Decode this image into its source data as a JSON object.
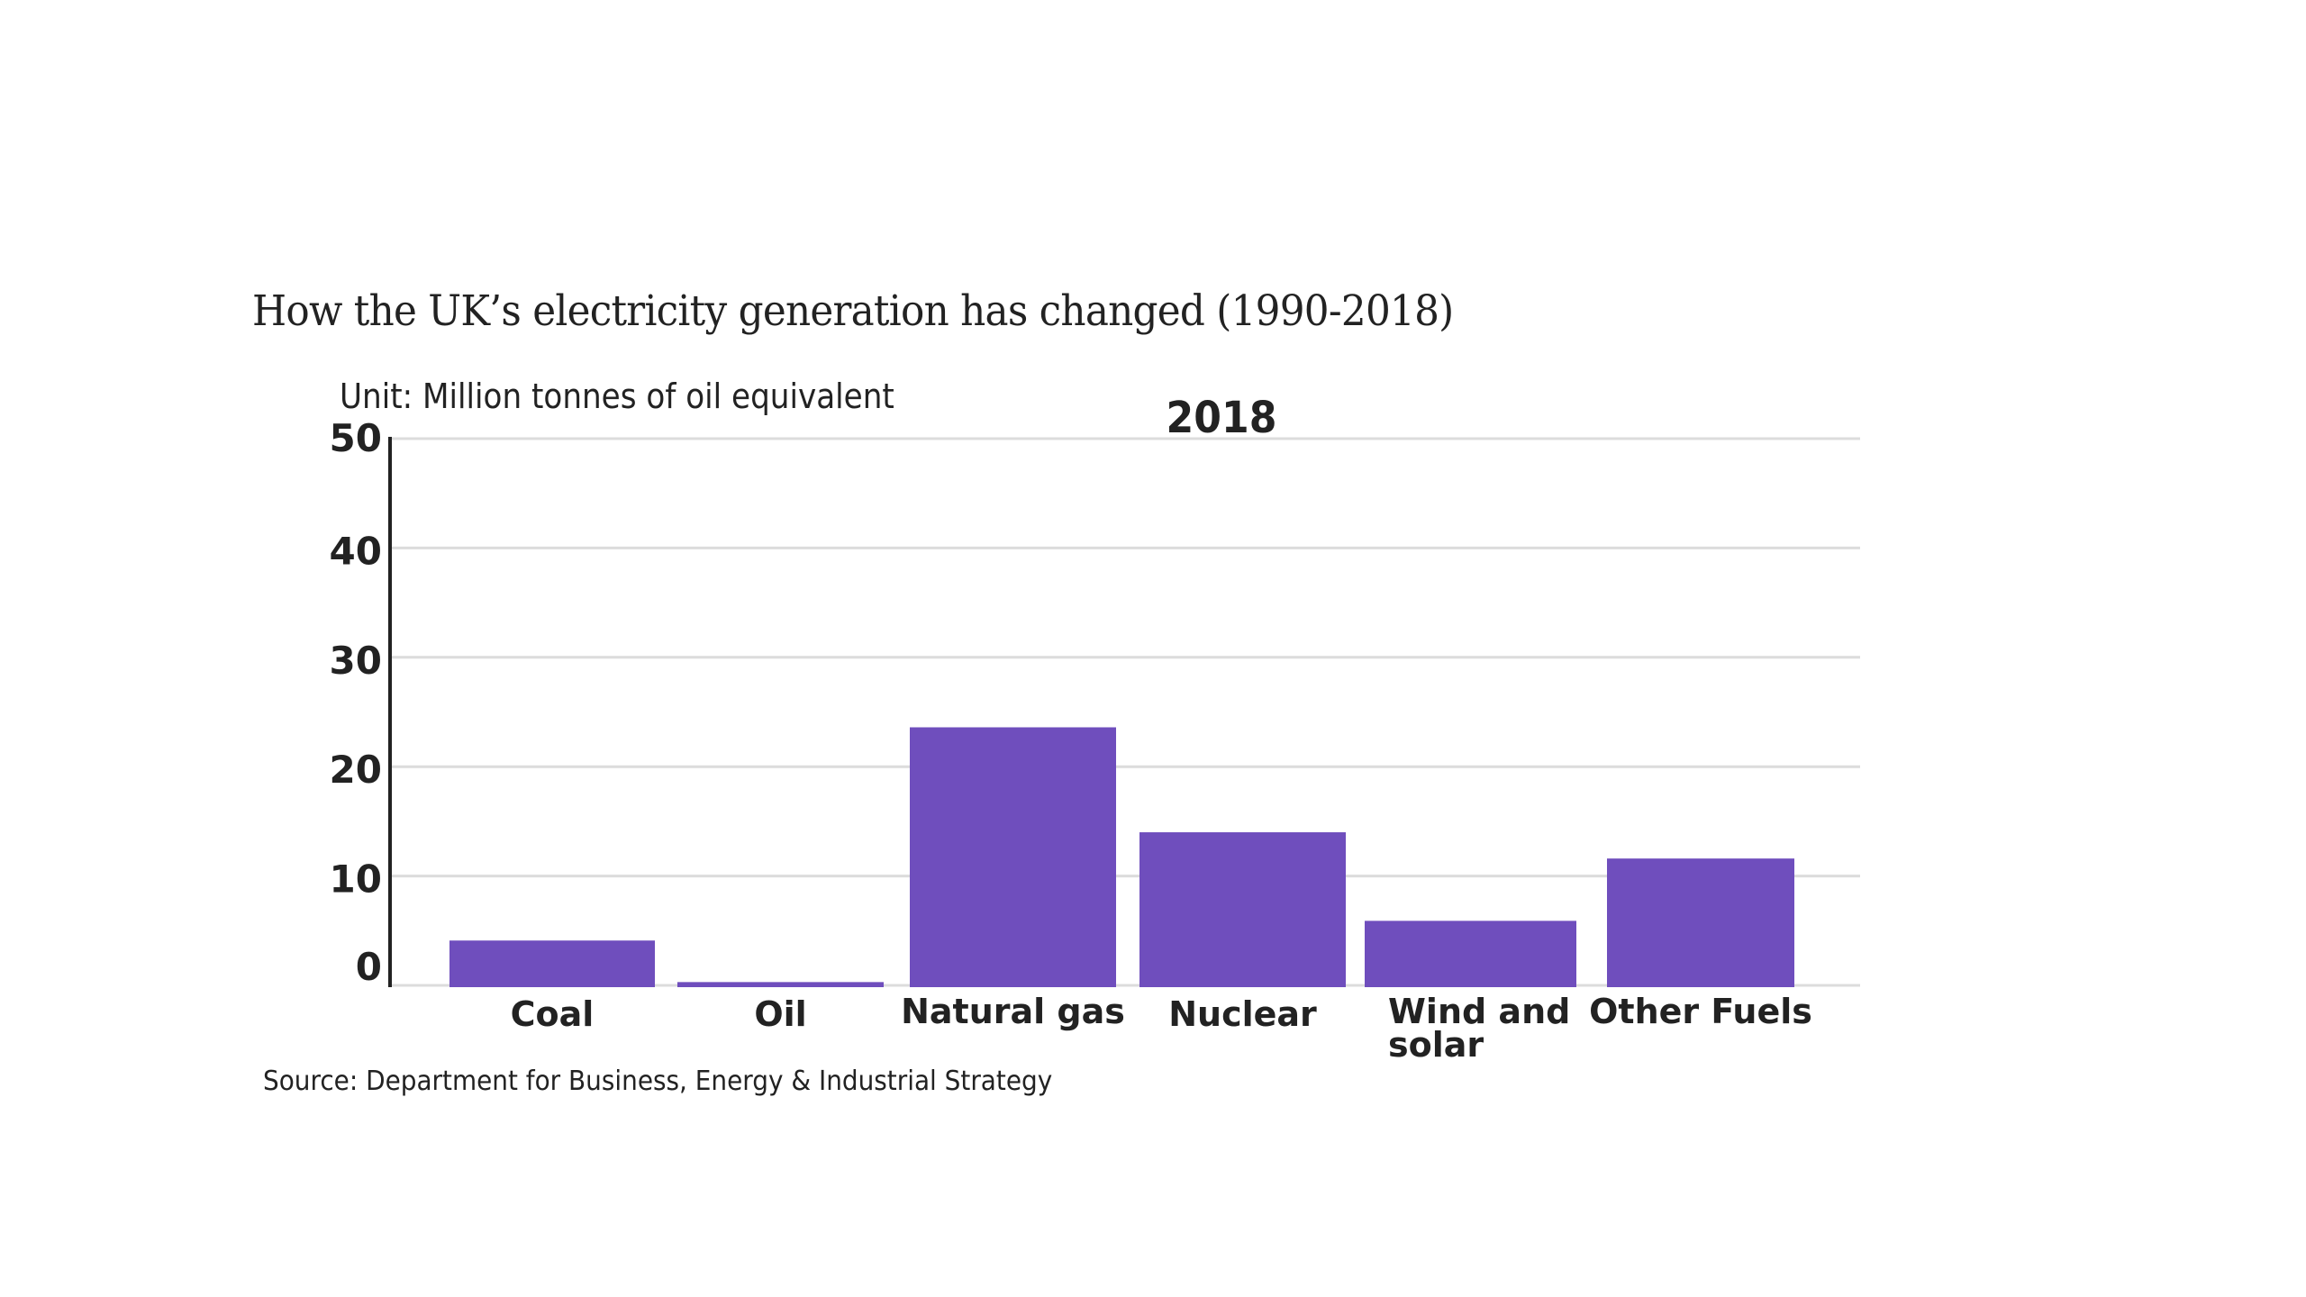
{
  "title": "How the UK’s electricity generation has changed (1990-2018)",
  "unit_label": "Unit: Million tonnes of oil equivalent",
  "year_label": "2018",
  "source": "Source: Department for Business, Energy & Industrial Strategy",
  "colors": {
    "bar": "#6f4ebd",
    "text": "#222222",
    "grid": "#dcdcdc"
  },
  "chart_data": {
    "type": "bar",
    "title": "How the UK’s electricity generation has changed (1990-2018)",
    "subtitle": "2018",
    "xlabel": "",
    "ylabel": "Unit: Million tonnes of oil equivalent",
    "categories": [
      "Coal",
      "Oil",
      "Natural gas",
      "Nuclear",
      "Wind and solar",
      "Other Fuels"
    ],
    "category_label_lines": [
      [
        "Coal"
      ],
      [
        "Oil"
      ],
      [
        "Natural gas"
      ],
      [
        "Nuclear"
      ],
      [
        "Wind and",
        "solar"
      ],
      [
        "Other Fuels"
      ]
    ],
    "values": [
      4.1,
      0.3,
      23.6,
      14.0,
      5.9,
      11.6
    ],
    "ylim": [
      0,
      50
    ],
    "yticks": [
      0,
      10,
      20,
      30,
      40,
      50
    ],
    "grid": true,
    "legend": "none",
    "source": "Department for Business, Energy & Industrial Strategy"
  }
}
